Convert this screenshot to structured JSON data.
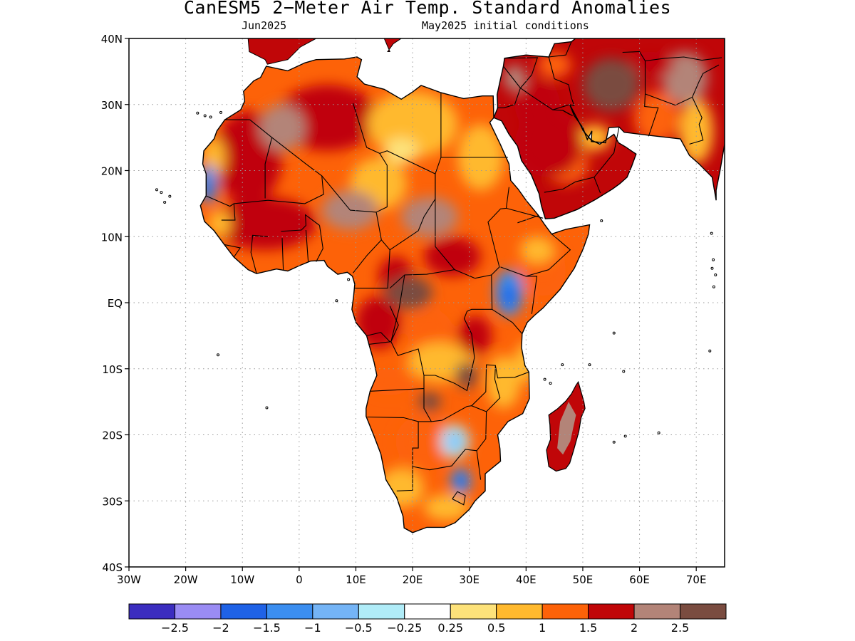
{
  "title": "CanESM5 2−Meter Air Temp. Standard Anomalies",
  "subtitle_left": "Jun2025",
  "subtitle_right": "May2025 initial conditions",
  "axes": {
    "lon_range": [
      -30,
      75
    ],
    "lat_range": [
      -40,
      40
    ],
    "lon_ticks": [
      {
        "value": -30,
        "label": "30W"
      },
      {
        "value": -20,
        "label": "20W"
      },
      {
        "value": -10,
        "label": "10W"
      },
      {
        "value": 0,
        "label": "0"
      },
      {
        "value": 10,
        "label": "10E"
      },
      {
        "value": 20,
        "label": "20E"
      },
      {
        "value": 30,
        "label": "30E"
      },
      {
        "value": 40,
        "label": "40E"
      },
      {
        "value": 50,
        "label": "50E"
      },
      {
        "value": 60,
        "label": "60E"
      },
      {
        "value": 70,
        "label": "70E"
      }
    ],
    "lat_ticks": [
      {
        "value": 40,
        "label": "40N"
      },
      {
        "value": 30,
        "label": "30N"
      },
      {
        "value": 20,
        "label": "20N"
      },
      {
        "value": 10,
        "label": "10N"
      },
      {
        "value": 0,
        "label": "EQ"
      },
      {
        "value": -10,
        "label": "10S"
      },
      {
        "value": -20,
        "label": "20S"
      },
      {
        "value": -30,
        "label": "30S"
      },
      {
        "value": -40,
        "label": "40S"
      }
    ],
    "grid": "dotted"
  },
  "colorbar": {
    "colors": [
      "#3b2dbf",
      "#9a8cf4",
      "#1f62e6",
      "#3b8ef0",
      "#74b4f6",
      "#b0ecf8",
      "#ffffff",
      "#fde27a",
      "#ffb92e",
      "#fd6208",
      "#c00608",
      "#b38478",
      "#7a4c40"
    ],
    "labels": [
      "−2.5",
      "−2",
      "−1.5",
      "−1",
      "−0.5",
      "−0.25",
      "0.25",
      "0.5",
      "1",
      "1.5",
      "2",
      "2.5"
    ]
  },
  "anomaly_regions": [
    {
      "name": "west-sahara-brown",
      "lon": -3,
      "lat": 26.5,
      "rlon": 4,
      "rlat": 3.5,
      "color": "#b38478"
    },
    {
      "name": "sahel-brown",
      "lon": 9,
      "lat": 14,
      "rlon": 5,
      "rlat": 3,
      "color": "#b38478"
    },
    {
      "name": "chad-brown",
      "lon": 23,
      "lat": 13,
      "rlon": 5,
      "rlat": 3,
      "color": "#b38478"
    },
    {
      "name": "congo-darkbrown",
      "lon": 19.5,
      "lat": 1.5,
      "rlon": 4,
      "rlat": 2.5,
      "color": "#7a4c40"
    },
    {
      "name": "east-africa-blue",
      "lon": 37,
      "lat": 1.5,
      "rlon": 2.5,
      "rlat": 3.5,
      "color": "#3b8ef0"
    },
    {
      "name": "malawi-darkbrown",
      "lon": 29.5,
      "lat": -11,
      "rlon": 2,
      "rlat": 2,
      "color": "#7a4c40"
    },
    {
      "name": "zambia-darkbrown",
      "lon": 23,
      "lat": -15,
      "rlon": 2,
      "rlat": 1.5,
      "color": "#7a4c40"
    },
    {
      "name": "south-africa-blue",
      "lon": 28.5,
      "lat": -27,
      "rlon": 1.8,
      "rlat": 2,
      "color": "#3b8ef0"
    },
    {
      "name": "botswana-lightblue",
      "lon": 27.5,
      "lat": -21,
      "rlon": 2.5,
      "rlat": 2.5,
      "color": "#b0ecf8"
    },
    {
      "name": "senegal-blue",
      "lon": -16,
      "lat": 18,
      "rlon": 1.5,
      "rlat": 3,
      "color": "#3b8ef0"
    },
    {
      "name": "madagascar-brown",
      "lon": 47,
      "lat": -20,
      "rlon": 1.5,
      "rlat": 3.5,
      "color": "#b38478"
    },
    {
      "name": "iran-darkbrown",
      "lon": 55,
      "lat": 33,
      "rlon": 5,
      "rlat": 4,
      "color": "#7a4c40"
    },
    {
      "name": "arabia-red",
      "lon": 44,
      "lat": 24,
      "rlon": 6,
      "rlat": 5,
      "color": "#c00608"
    }
  ]
}
